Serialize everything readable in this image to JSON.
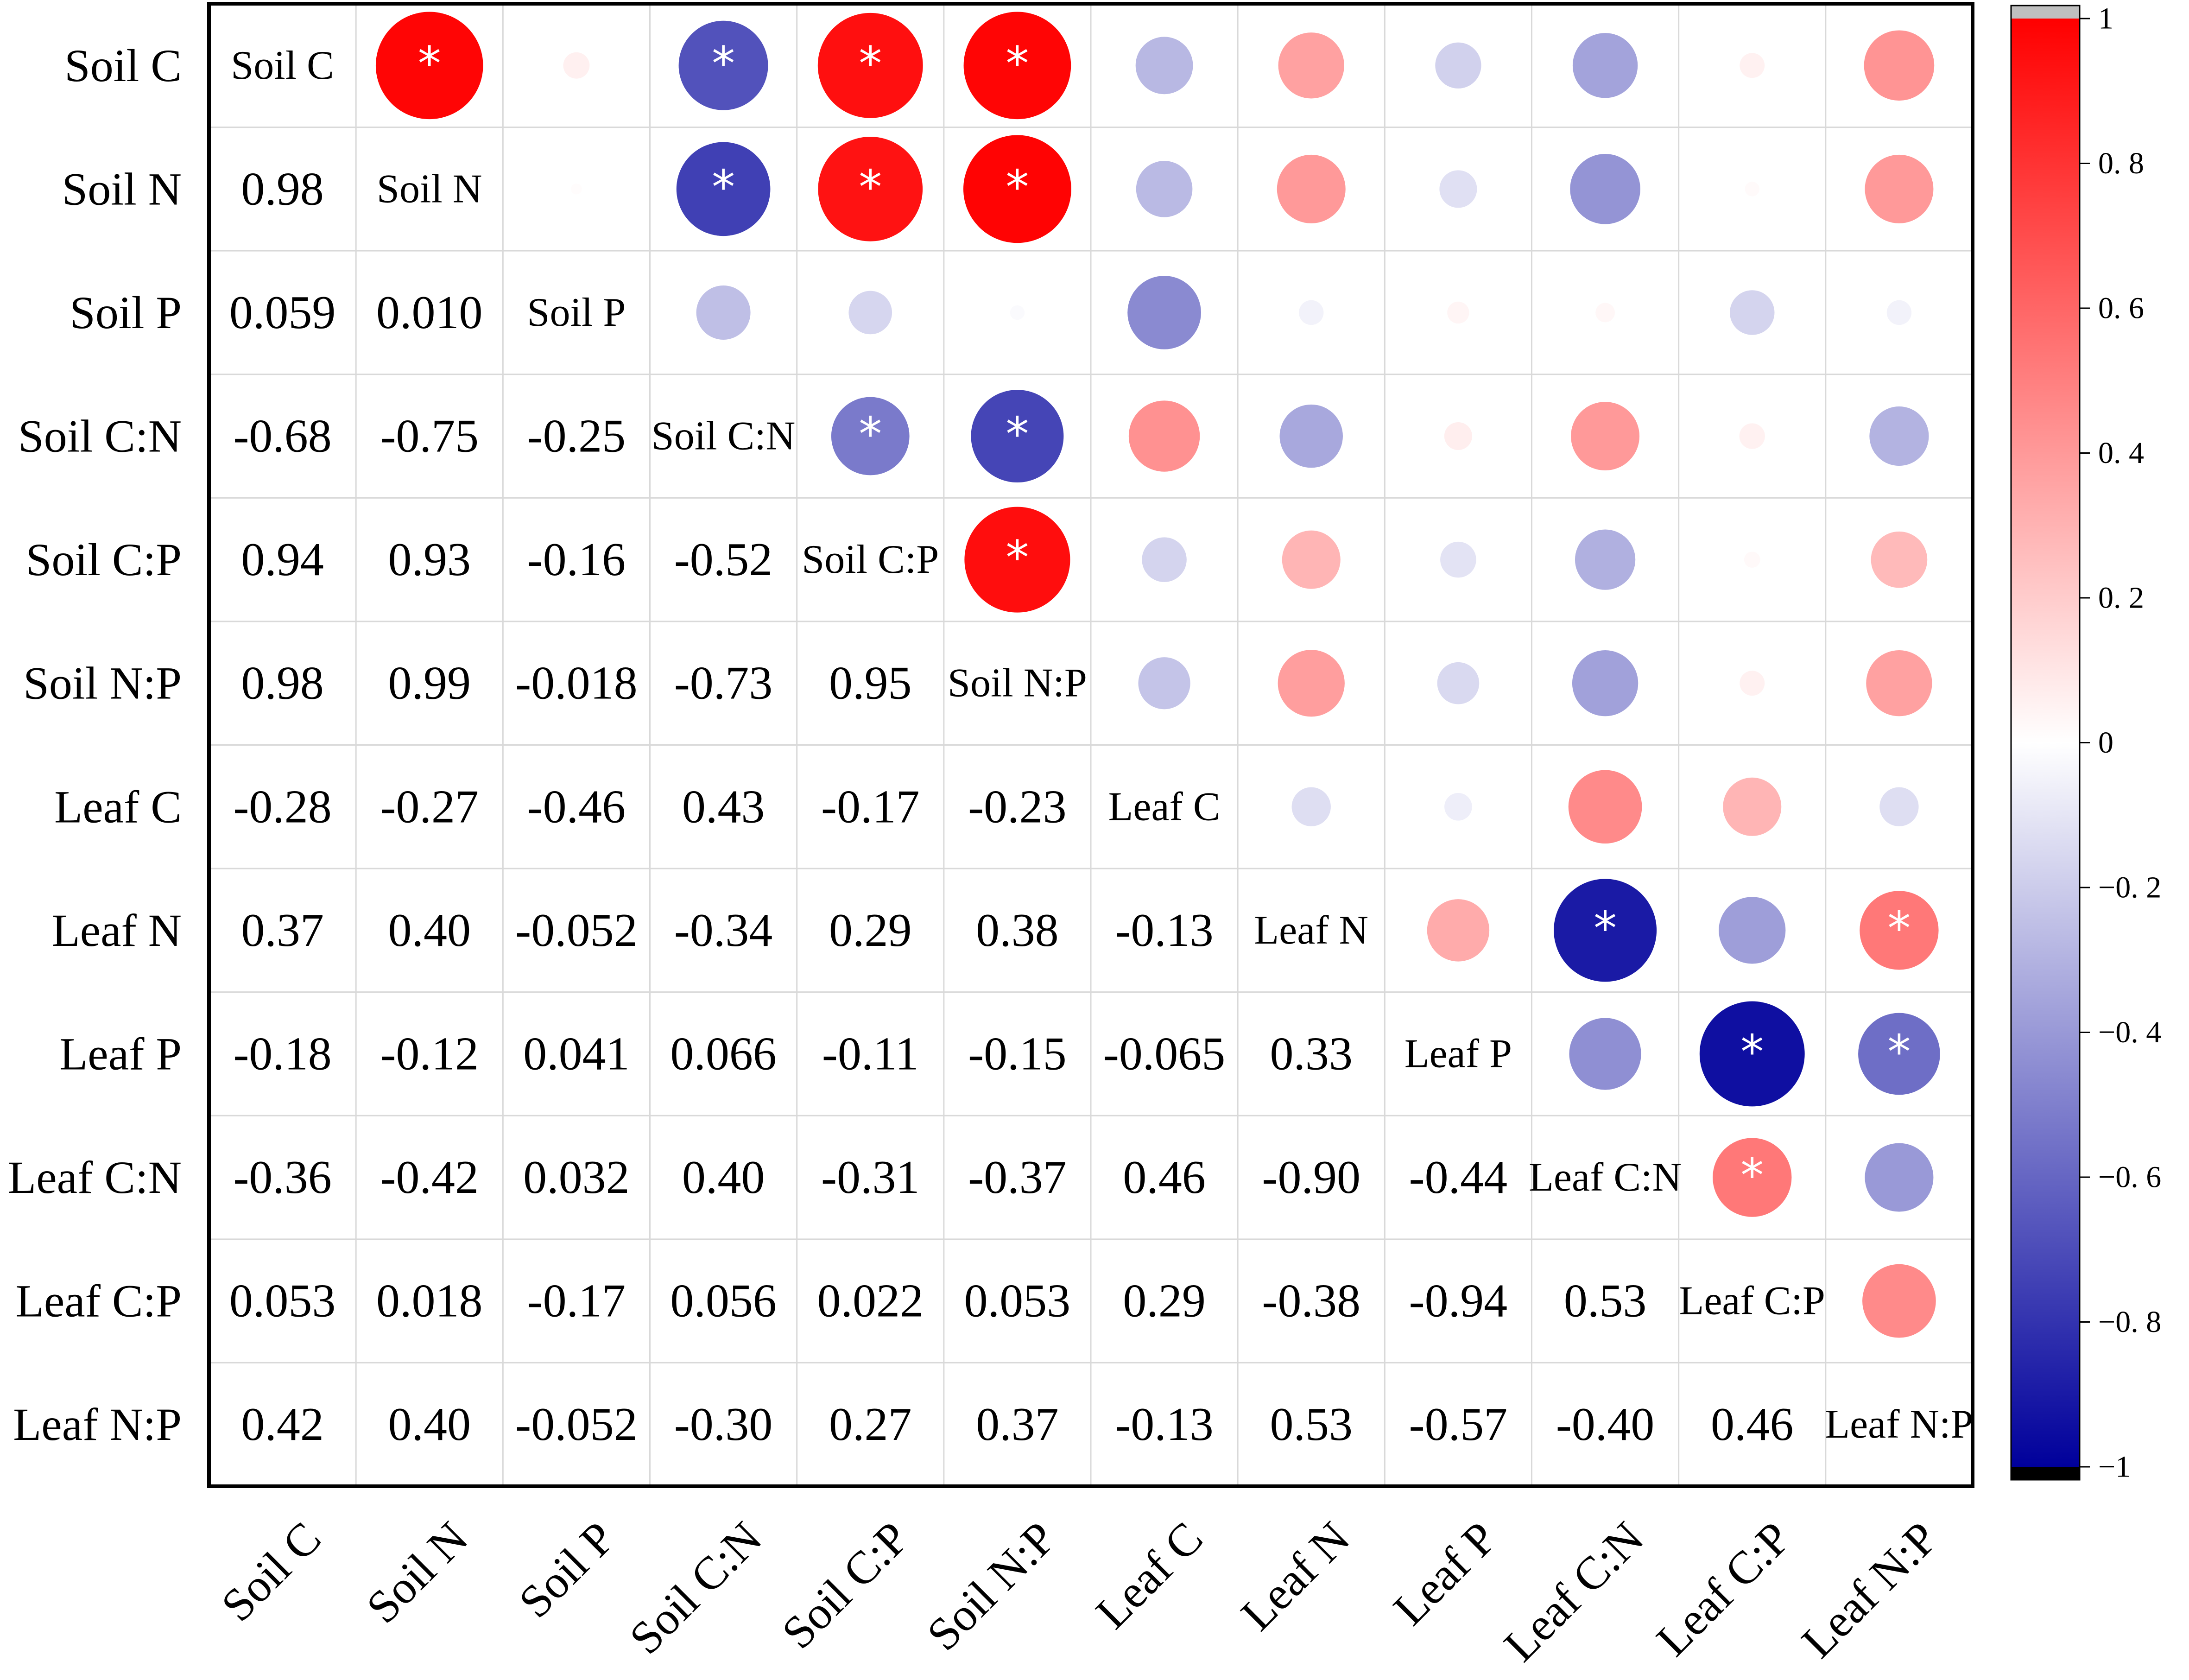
{
  "chart_data": {
    "type": "heatmap",
    "subtype": "correlation-matrix",
    "variables": [
      "Soil C",
      "Soil N",
      "Soil P",
      "Soil C:N",
      "Soil C:P",
      "Soil N:P",
      "Leaf C",
      "Leaf N",
      "Leaf P",
      "Leaf C:N",
      "Leaf C:P",
      "Leaf N:P"
    ],
    "matrix_display": [
      [
        "Soil C",
        "",
        "",
        "",
        "",
        "",
        "",
        "",
        "",
        "",
        "",
        ""
      ],
      [
        "0.98",
        "Soil N",
        "",
        "",
        "",
        "",
        "",
        "",
        "",
        "",
        "",
        ""
      ],
      [
        "0.059",
        "0.010",
        "Soil P",
        "",
        "",
        "",
        "",
        "",
        "",
        "",
        "",
        ""
      ],
      [
        "-0.68",
        "-0.75",
        "-0.25",
        "Soil C:N",
        "",
        "",
        "",
        "",
        "",
        "",
        "",
        ""
      ],
      [
        "0.94",
        "0.93",
        "-0.16",
        "-0.52",
        "Soil C:P",
        "",
        "",
        "",
        "",
        "",
        "",
        ""
      ],
      [
        "0.98",
        "0.99",
        "-0.018",
        "-0.73",
        "0.95",
        "Soil N:P",
        "",
        "",
        "",
        "",
        "",
        ""
      ],
      [
        "-0.28",
        "-0.27",
        "-0.46",
        "0.43",
        "-0.17",
        "-0.23",
        "Leaf C",
        "",
        "",
        "",
        "",
        ""
      ],
      [
        "0.37",
        "0.40",
        "-0.052",
        "-0.34",
        "0.29",
        "0.38",
        "-0.13",
        "Leaf N",
        "",
        "",
        "",
        ""
      ],
      [
        "-0.18",
        "-0.12",
        "0.041",
        "0.066",
        "-0.11",
        "-0.15",
        "-0.065",
        "0.33",
        "Leaf P",
        "",
        "",
        ""
      ],
      [
        "-0.36",
        "-0.42",
        "0.032",
        "0.40",
        "-0.31",
        "-0.37",
        "0.46",
        "-0.90",
        "-0.44",
        "Leaf C:N",
        "",
        ""
      ],
      [
        "0.053",
        "0.018",
        "-0.17",
        "0.056",
        "0.022",
        "0.053",
        "0.29",
        "-0.38",
        "-0.94",
        "0.53",
        "Leaf C:P",
        ""
      ],
      [
        "0.42",
        "0.40",
        "-0.052",
        "-0.30",
        "0.27",
        "0.37",
        "-0.13",
        "0.53",
        "-0.57",
        "-0.40",
        "0.46",
        "Leaf N:P"
      ]
    ],
    "lower_triangle": [
      [],
      [
        0.98
      ],
      [
        0.059,
        0.01
      ],
      [
        -0.68,
        -0.75,
        -0.25
      ],
      [
        0.94,
        0.93,
        -0.16,
        -0.52
      ],
      [
        0.98,
        0.99,
        -0.018,
        -0.73,
        0.95
      ],
      [
        -0.28,
        -0.27,
        -0.46,
        0.43,
        -0.17,
        -0.23
      ],
      [
        0.37,
        0.4,
        -0.052,
        -0.34,
        0.29,
        0.38,
        -0.13
      ],
      [
        -0.18,
        -0.12,
        0.041,
        0.066,
        -0.11,
        -0.15,
        -0.065,
        0.33
      ],
      [
        -0.36,
        -0.42,
        0.032,
        0.4,
        -0.31,
        -0.37,
        0.46,
        -0.9,
        -0.44
      ],
      [
        0.053,
        0.018,
        -0.17,
        0.056,
        0.022,
        0.053,
        0.29,
        -0.38,
        -0.94,
        0.53
      ],
      [
        0.42,
        0.4,
        -0.052,
        -0.3,
        0.27,
        0.37,
        -0.13,
        0.53,
        -0.57,
        -0.4,
        0.46
      ]
    ],
    "significant_pairs": [
      [
        0,
        1
      ],
      [
        0,
        3
      ],
      [
        0,
        4
      ],
      [
        0,
        5
      ],
      [
        1,
        3
      ],
      [
        1,
        4
      ],
      [
        1,
        5
      ],
      [
        3,
        4
      ],
      [
        3,
        5
      ],
      [
        4,
        5
      ],
      [
        7,
        9
      ],
      [
        7,
        11
      ],
      [
        8,
        10
      ],
      [
        8,
        11
      ],
      [
        9,
        10
      ]
    ],
    "significance_marker": "*",
    "upper_triangle_encoding": "circle size and color proportional to correlation",
    "colorbar": {
      "range": [
        -1,
        1
      ],
      "ticks": [
        1,
        0.8,
        0.6,
        0.4,
        0.2,
        0,
        -0.2,
        -0.4,
        -0.6,
        -0.8,
        -1
      ],
      "tick_labels": [
        "1",
        "0. 8",
        "0. 6",
        "0. 4",
        "0. 2",
        "0",
        "−0. 2",
        "−0. 4",
        "−0. 6",
        "−0. 8",
        "−1"
      ],
      "low_color": "#00009b",
      "mid_color": "#ffffff",
      "high_color": "#ff0000",
      "over_color": "#bfbfbf",
      "under_color": "#000000"
    },
    "colors": {
      "frame": "#000000",
      "grid": "#d9d9d9",
      "star": "#ffffff"
    }
  }
}
